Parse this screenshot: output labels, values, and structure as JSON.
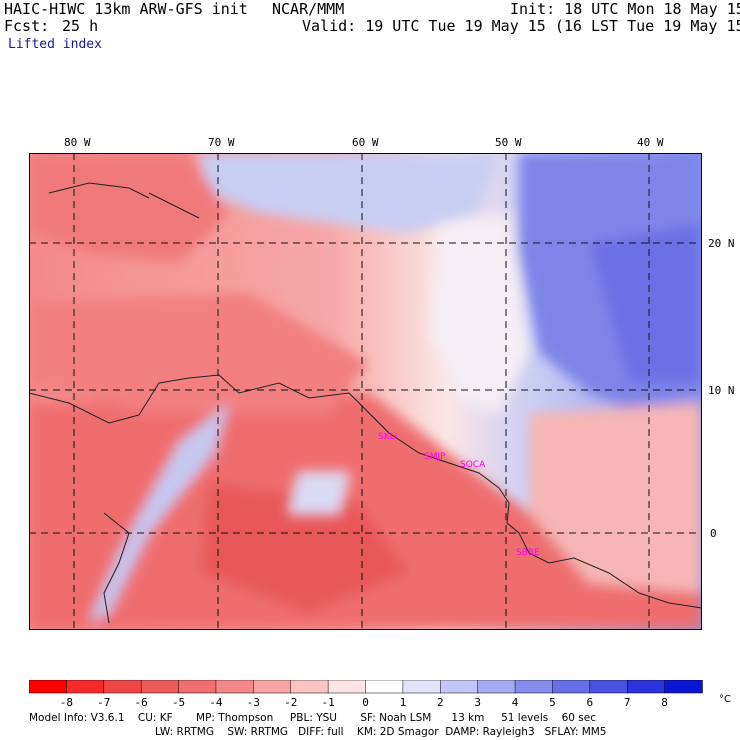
{
  "header": {
    "model": "HAIC-HIWC 13km ARW-GFS init",
    "org": "NCAR/MMM",
    "init": "Init: 18 UTC Mon 18 May 15",
    "fcst_label": "Fcst:",
    "fcst_value": "25 h",
    "valid": "Valid: 19 UTC Tue 19 May 15 (16 LST Tue 19 May 15)",
    "field": "Lifted index"
  },
  "map": {
    "lon_labels": [
      "80 W",
      "70 W",
      "60 W",
      "50 W",
      "40 W"
    ],
    "lat_labels": [
      "20 N",
      "10 N",
      "0"
    ],
    "stations": [
      "SKLI",
      "SMJP",
      "SOCA",
      "SBBE"
    ]
  },
  "colorbar": {
    "ticks": [
      "-8",
      "-7",
      "-6",
      "-5",
      "-4",
      "-3",
      "-2",
      "-1",
      "0",
      "1",
      "2",
      "3",
      "4",
      "5",
      "6",
      "7",
      "8"
    ],
    "unit": "°C",
    "colors": [
      "#ff0000",
      "#f52a2a",
      "#ef4545",
      "#ec5a5a",
      "#f06e6e",
      "#f48888",
      "#f8a4a4",
      "#fbc4c4",
      "#fde3e3",
      "#ffffff",
      "#e1e3fb",
      "#c3c6f6",
      "#a6aaf1",
      "#878cec",
      "#686ee6",
      "#4a52e2",
      "#2b34dc",
      "#0a16d6"
    ]
  },
  "footer": {
    "line1": "Model Info: V3.6.1    CU: KF       MP: Thompson     PBL: YSU       SF: Noah LSM      13 km     51 levels    60 sec",
    "line2": "LW: RRTMG    SW: RRTMG   DIFF: full    KM: 2D Smagor  DAMP: Rayleigh3   SFLAY: MM5"
  }
}
